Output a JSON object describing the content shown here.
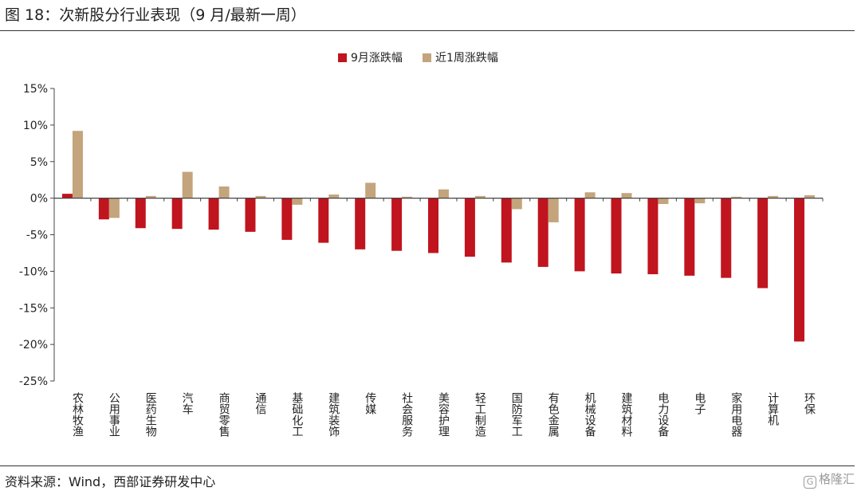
{
  "header": {
    "title": "图 18：次新股分行业表现（9 月/最新一周）"
  },
  "footer": {
    "source": "资料来源：Wind，西部证券研发中心",
    "watermark_text": "格隆汇",
    "watermark_glyph": "G"
  },
  "colors": {
    "series_1": "#c0141e",
    "series_2": "#c4a47c"
  },
  "chart_data": {
    "type": "bar",
    "categories": [
      "农林牧渔",
      "公用事业",
      "医药生物",
      "汽车",
      "商贸零售",
      "通信",
      "基础化工",
      "建筑装饰",
      "传媒",
      "社会服务",
      "美容护理",
      "轻工制造",
      "国防军工",
      "有色金属",
      "机械设备",
      "建筑材料",
      "电力设备",
      "电子",
      "家用电器",
      "计算机",
      "环保"
    ],
    "series": [
      {
        "name": "9月涨跌幅",
        "values": [
          0.6,
          -2.9,
          -4.1,
          -4.2,
          -4.3,
          -4.6,
          -5.7,
          -6.1,
          -7.0,
          -7.2,
          -7.5,
          -8.0,
          -8.8,
          -9.4,
          -10.0,
          -10.3,
          -10.4,
          -10.6,
          -10.9,
          -12.3,
          -19.6
        ]
      },
      {
        "name": "近1周涨跌幅",
        "values": [
          9.2,
          -2.7,
          0.3,
          3.6,
          1.6,
          0.3,
          -0.9,
          0.5,
          2.1,
          0.2,
          1.2,
          0.3,
          -1.5,
          -3.3,
          0.8,
          0.7,
          -0.8,
          -0.7,
          0.2,
          0.3,
          0.4
        ]
      }
    ],
    "yticks": [
      "15%",
      "10%",
      "5%",
      "0%",
      "-5%",
      "-10%",
      "-15%",
      "-20%",
      "-25%"
    ],
    "ylim": [
      -25,
      15
    ],
    "legend_position": "top-center",
    "grid": false
  }
}
